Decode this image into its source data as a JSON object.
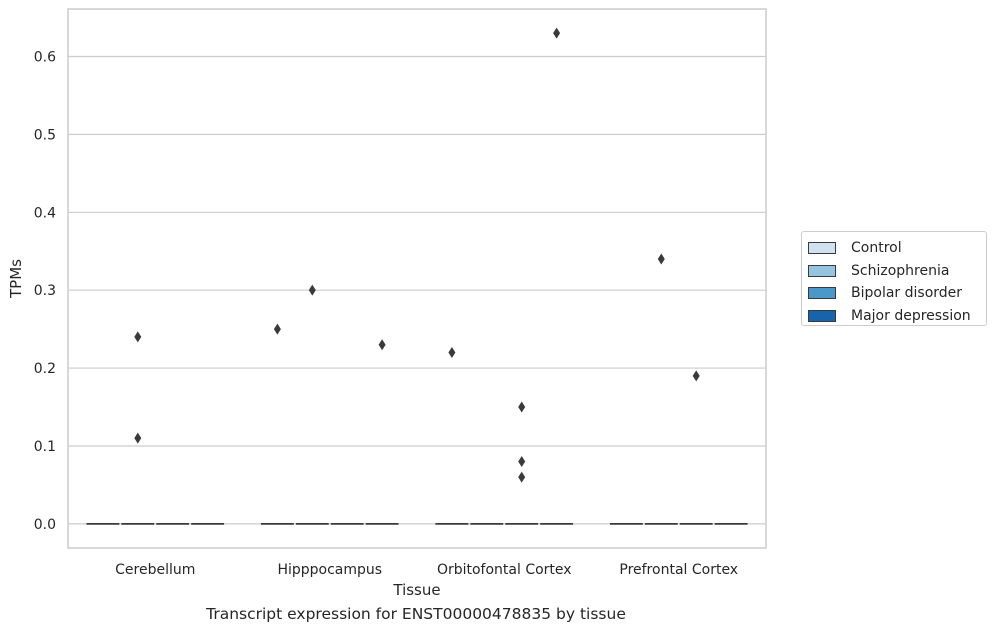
{
  "chart_data": {
    "type": "box",
    "title": "Transcript expression for ENST00000478835 by tissue",
    "xlabel": "Tissue",
    "ylabel": "TPMs",
    "categories": [
      "Cerebellum",
      "Hipppocampus",
      "Orbitofontal Cortex",
      "Prefrontal Cortex"
    ],
    "ylim": [
      -0.031,
      0.661
    ],
    "yticks": [
      "0.0",
      "0.1",
      "0.2",
      "0.3",
      "0.4",
      "0.5",
      "0.6"
    ],
    "yticks_values": [
      0,
      0.1,
      0.2,
      0.3,
      0.4,
      0.5,
      0.6
    ],
    "grid": "horizontal",
    "legend_position": "right",
    "series": [
      {
        "name": "Control",
        "color": "#d0e1f2"
      },
      {
        "name": "Schizophrenia",
        "color": "#94c4df"
      },
      {
        "name": "Bipolar disorder",
        "color": "#4a98c9"
      },
      {
        "name": "Major depression",
        "color": "#1764ab"
      }
    ],
    "box_median": 0,
    "outliers": [
      {
        "category": "Cerebellum",
        "series": "Schizophrenia",
        "values": [
          0.24,
          0.11
        ]
      },
      {
        "category": "Hipppocampus",
        "series": "Control",
        "values": [
          0.25
        ]
      },
      {
        "category": "Hipppocampus",
        "series": "Schizophrenia",
        "values": [
          0.3
        ]
      },
      {
        "category": "Hipppocampus",
        "series": "Major depression",
        "values": [
          0.23
        ]
      },
      {
        "category": "Orbitofontal Cortex",
        "series": "Control",
        "values": [
          0.22
        ]
      },
      {
        "category": "Orbitofontal Cortex",
        "series": "Bipolar disorder",
        "values": [
          0.15,
          0.08,
          0.06
        ]
      },
      {
        "category": "Orbitofontal Cortex",
        "series": "Major depression",
        "values": [
          0.63
        ]
      },
      {
        "category": "Prefrontal Cortex",
        "series": "Schizophrenia",
        "values": [
          0.34
        ]
      },
      {
        "category": "Prefrontal Cortex",
        "series": "Bipolar disorder",
        "values": [
          0.19
        ]
      }
    ],
    "outliers_note": "",
    "colors": {
      "grid": "#cccccc",
      "frame": "#cccccc",
      "marker": "#3a3a3a"
    }
  }
}
